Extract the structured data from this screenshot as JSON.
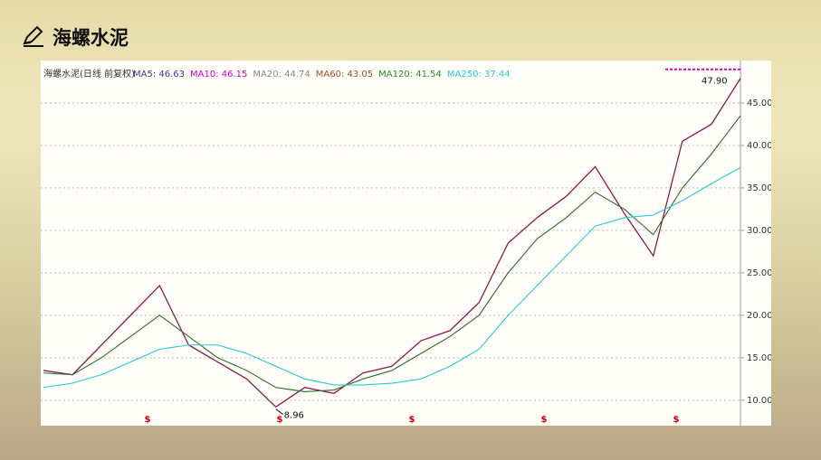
{
  "header": {
    "title": "海螺水泥"
  },
  "chart_data": {
    "type": "line",
    "title": "海螺水泥(日线 前复权)",
    "legend": [
      {
        "label": "MA5: 46.63",
        "color": "#3a3a8c"
      },
      {
        "label": "MA10: 46.15",
        "color": "#d000d0"
      },
      {
        "label": "MA20: 44.74",
        "color": "#888888"
      },
      {
        "label": "MA60: 43.05",
        "color": "#a0522d"
      },
      {
        "label": "MA120: 41.54",
        "color": "#2e8b2e"
      },
      {
        "label": "MA250: 37.44",
        "color": "#28c8d8"
      }
    ],
    "categories": [
      null,
      null,
      null,
      null,
      null,
      null,
      null,
      null,
      null,
      null,
      null,
      null,
      null,
      null,
      null,
      null,
      null,
      null,
      null,
      null,
      null,
      null,
      null,
      null,
      null
    ],
    "series": [
      {
        "color": "#8b1a4a",
        "values": [
          13.5,
          13.0,
          16.5,
          20.0,
          23.5,
          16.5,
          14.5,
          12.5,
          9.2,
          11.5,
          10.8,
          13.2,
          14.0,
          17.0,
          18.2,
          21.5,
          28.5,
          31.5,
          34.0,
          37.5,
          32.0,
          27.0,
          40.5,
          42.5,
          47.9
        ]
      },
      {
        "color": "#2e6b2e",
        "values": [
          13.2,
          13.0,
          15.0,
          17.5,
          20.0,
          17.5,
          15.0,
          13.5,
          11.5,
          11.0,
          11.2,
          12.5,
          13.5,
          15.5,
          17.5,
          20.0,
          25.0,
          29.0,
          31.5,
          34.5,
          32.5,
          29.5,
          35.0,
          39.0,
          43.5
        ]
      },
      {
        "color": "#28c8d8",
        "values": [
          11.5,
          12.0,
          13.0,
          14.5,
          16.0,
          16.5,
          16.5,
          15.5,
          14.0,
          12.5,
          11.8,
          11.8,
          12.0,
          12.5,
          14.0,
          16.0,
          20.0,
          23.5,
          27.0,
          30.5,
          31.5,
          31.8,
          33.5,
          35.5,
          37.4
        ]
      }
    ],
    "ylim": [
      7,
      50
    ],
    "yticks": [
      {
        "value": 10,
        "label": "10.00"
      },
      {
        "value": 15,
        "label": "15.00"
      },
      {
        "value": 20,
        "label": "20.00"
      },
      {
        "value": 25,
        "label": "25.00"
      },
      {
        "value": 30,
        "label": "30.00"
      },
      {
        "value": 35,
        "label": "35.00"
      },
      {
        "value": 40,
        "label": "40.00"
      },
      {
        "value": 45,
        "label": "45.00"
      }
    ],
    "grid": true,
    "annotations": [
      {
        "text": "47.90",
        "value": 47.9
      },
      {
        "text": "8.96",
        "value": 8.96
      }
    ],
    "dividend_markers": [
      "$",
      "$",
      "$",
      "$",
      "$"
    ]
  }
}
